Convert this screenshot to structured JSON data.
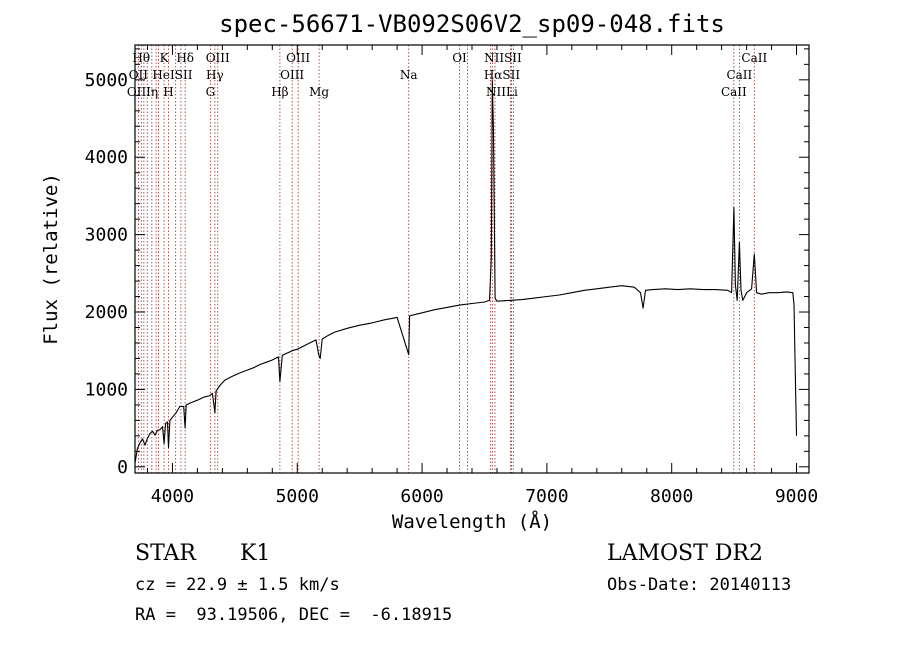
{
  "chart_data": {
    "type": "line",
    "title": "spec-56671-VB092S06V2_sp09-048.fits",
    "xlabel": "Wavelength (Å)",
    "ylabel": "Flux (relative)",
    "xlim": [
      3700,
      9100
    ],
    "ylim": [
      -80,
      5450
    ],
    "x_ticks": [
      4000,
      5000,
      6000,
      7000,
      8000,
      9000
    ],
    "y_ticks": [
      0,
      1000,
      2000,
      3000,
      4000,
      5000
    ],
    "grid": false,
    "series": [
      {
        "x": [
          3700,
          3720,
          3740,
          3760,
          3780,
          3800,
          3820,
          3840,
          3860,
          3880,
          3900,
          3920,
          3933,
          3945,
          3960,
          3968,
          3980,
          4000,
          4030,
          4060,
          4090,
          4101,
          4110,
          4150,
          4200,
          4250,
          4300,
          4320,
          4340,
          4350,
          4380,
          4420,
          4480,
          4550,
          4600,
          4650,
          4700,
          4750,
          4800,
          4850,
          4861,
          4880,
          4920,
          4960,
          5000,
          5050,
          5100,
          5150,
          5172,
          5184,
          5200,
          5250,
          5300,
          5400,
          5500,
          5600,
          5700,
          5800,
          5893,
          5900,
          5950,
          6000,
          6100,
          6200,
          6300,
          6400,
          6500,
          6540,
          6555,
          6563,
          6572,
          6585,
          6600,
          6700,
          6800,
          6900,
          7000,
          7100,
          7200,
          7300,
          7400,
          7500,
          7600,
          7700,
          7750,
          7771,
          7790,
          7850,
          7950,
          8050,
          8150,
          8250,
          8350,
          8450,
          8480,
          8498,
          8510,
          8525,
          8542,
          8555,
          8570,
          8600,
          8640,
          8662,
          8680,
          8720,
          8780,
          8850,
          8920,
          8970,
          8980,
          8990,
          9000
        ],
        "y": [
          50,
          240,
          310,
          360,
          280,
          370,
          430,
          460,
          410,
          470,
          480,
          520,
          300,
          560,
          580,
          250,
          600,
          640,
          700,
          780,
          780,
          500,
          800,
          830,
          860,
          900,
          920,
          950,
          700,
          980,
          1050,
          1120,
          1170,
          1220,
          1250,
          1280,
          1320,
          1350,
          1380,
          1420,
          1100,
          1440,
          1470,
          1500,
          1520,
          1560,
          1600,
          1640,
          1450,
          1400,
          1650,
          1700,
          1740,
          1790,
          1830,
          1860,
          1900,
          1930,
          1450,
          1950,
          1970,
          1990,
          2030,
          2060,
          2090,
          2110,
          2130,
          2150,
          2700,
          5000,
          4300,
          2180,
          2140,
          2150,
          2160,
          2180,
          2200,
          2220,
          2250,
          2280,
          2300,
          2320,
          2340,
          2320,
          2250,
          2050,
          2280,
          2290,
          2300,
          2290,
          2300,
          2290,
          2290,
          2280,
          2250,
          3350,
          2350,
          2150,
          2900,
          2280,
          2150,
          2250,
          2300,
          2750,
          2250,
          2230,
          2250,
          2250,
          2260,
          2250,
          2100,
          1200,
          400
        ]
      }
    ],
    "lines_lambda": [
      3727,
      3750,
      3771,
      3798,
      3835,
      3869,
      3889,
      3933,
      3968,
      4026,
      4068,
      4102,
      4304,
      4340,
      4363,
      4861,
      4959,
      5007,
      5175,
      5893,
      6300,
      6364,
      6548,
      6563,
      6584,
      6708,
      6717,
      6731,
      8498,
      8542,
      8662
    ],
    "line_labels": [
      {
        "text": "Hθ",
        "x": 3750,
        "row": 1
      },
      {
        "text": "K",
        "x": 3933,
        "row": 1
      },
      {
        "text": "Hδ",
        "x": 4102,
        "row": 1
      },
      {
        "text": "OIII",
        "x": 4363,
        "row": 1
      },
      {
        "text": "OIII",
        "x": 5007,
        "row": 1
      },
      {
        "text": "OI",
        "x": 6300,
        "row": 1
      },
      {
        "text": "NIISII",
        "x": 6648,
        "row": 1
      },
      {
        "text": "CaII",
        "x": 8662,
        "row": 1
      },
      {
        "text": "OII",
        "x": 3727,
        "row": 2
      },
      {
        "text": "HeISII",
        "x": 4000,
        "row": 2
      },
      {
        "text": "Hγ",
        "x": 4340,
        "row": 2
      },
      {
        "text": "OIII",
        "x": 4959,
        "row": 2
      },
      {
        "text": "Na",
        "x": 5893,
        "row": 2
      },
      {
        "text": "HαSII",
        "x": 6640,
        "row": 2
      },
      {
        "text": "CaII",
        "x": 8542,
        "row": 2
      },
      {
        "text": "OIIIη",
        "x": 3760,
        "row": 3
      },
      {
        "text": "H",
        "x": 3968,
        "row": 3
      },
      {
        "text": "G",
        "x": 4304,
        "row": 3
      },
      {
        "text": "Hβ",
        "x": 4861,
        "row": 3
      },
      {
        "text": "Mg",
        "x": 5175,
        "row": 3
      },
      {
        "text": "NIILi",
        "x": 6640,
        "row": 3
      },
      {
        "text": "CaII",
        "x": 8498,
        "row": 3
      }
    ]
  },
  "info": {
    "object_class": "STAR",
    "subclass": "K1",
    "survey": "LAMOST DR2",
    "redshift": "cz = 22.9 ± 1.5 km/s",
    "obs_date": "Obs-Date: 20140113",
    "coords": "RA =  93.19506, DEC =  -6.18915"
  }
}
